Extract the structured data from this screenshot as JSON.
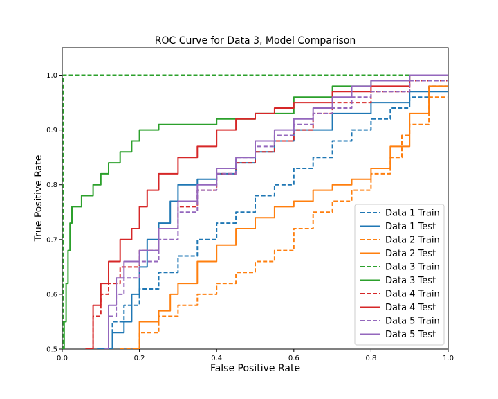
{
  "chart_data": {
    "type": "line",
    "title": "ROC Curve for Data 3, Model Comparison",
    "xlabel": "False Positive Rate",
    "ylabel": "True Positive Rate",
    "xlim": [
      0.0,
      1.0
    ],
    "ylim": [
      0.5,
      1.05
    ],
    "xticks": [
      "0.0",
      "0.2",
      "0.4",
      "0.6",
      "0.8",
      "1.0"
    ],
    "yticks": [
      "0.5",
      "0.6",
      "0.7",
      "0.8",
      "0.9",
      "1.0"
    ],
    "grid": false,
    "legend_position": "lower-right",
    "series": [
      {
        "name": "Data 1 Train",
        "color": "#1f77b4",
        "style": "dashed",
        "x": [
          0.09,
          0.13,
          0.16,
          0.2,
          0.25,
          0.3,
          0.35,
          0.4,
          0.45,
          0.5,
          0.55,
          0.6,
          0.65,
          0.7,
          0.75,
          0.8,
          0.85,
          0.9,
          0.95,
          1.0
        ],
        "y": [
          0.5,
          0.55,
          0.58,
          0.61,
          0.64,
          0.67,
          0.7,
          0.73,
          0.75,
          0.78,
          0.8,
          0.83,
          0.85,
          0.88,
          0.9,
          0.92,
          0.94,
          0.96,
          0.98,
          1.0
        ]
      },
      {
        "name": "Data 1 Test",
        "color": "#1f77b4",
        "style": "solid",
        "x": [
          0.1,
          0.13,
          0.16,
          0.18,
          0.2,
          0.22,
          0.25,
          0.28,
          0.3,
          0.35,
          0.4,
          0.45,
          0.5,
          0.55,
          0.6,
          0.7,
          0.8,
          0.9,
          1.0
        ],
        "y": [
          0.5,
          0.53,
          0.55,
          0.6,
          0.65,
          0.7,
          0.73,
          0.77,
          0.8,
          0.81,
          0.82,
          0.84,
          0.86,
          0.88,
          0.9,
          0.93,
          0.95,
          0.97,
          1.0
        ]
      },
      {
        "name": "Data 2 Train",
        "color": "#ff7f0e",
        "style": "dashed",
        "x": [
          0.15,
          0.2,
          0.25,
          0.3,
          0.35,
          0.4,
          0.45,
          0.5,
          0.55,
          0.6,
          0.65,
          0.7,
          0.75,
          0.8,
          0.85,
          0.88,
          0.9,
          0.95,
          1.0
        ],
        "y": [
          0.5,
          0.53,
          0.56,
          0.58,
          0.6,
          0.62,
          0.64,
          0.66,
          0.68,
          0.72,
          0.75,
          0.77,
          0.79,
          0.82,
          0.85,
          0.89,
          0.91,
          0.96,
          1.0
        ]
      },
      {
        "name": "Data 2 Test",
        "color": "#ff7f0e",
        "style": "solid",
        "x": [
          0.19,
          0.2,
          0.25,
          0.28,
          0.3,
          0.35,
          0.4,
          0.45,
          0.5,
          0.55,
          0.6,
          0.65,
          0.7,
          0.75,
          0.8,
          0.85,
          0.9,
          0.95,
          1.0
        ],
        "y": [
          0.5,
          0.55,
          0.57,
          0.6,
          0.62,
          0.66,
          0.69,
          0.72,
          0.74,
          0.76,
          0.77,
          0.79,
          0.8,
          0.81,
          0.83,
          0.87,
          0.93,
          0.98,
          1.0
        ]
      },
      {
        "name": "Data 3 Train",
        "color": "#2ca02c",
        "style": "dashed",
        "x": [
          0.0,
          0.003,
          0.2,
          0.4,
          0.6,
          0.8,
          1.0
        ],
        "y": [
          0.5,
          1.0,
          1.0,
          1.0,
          1.0,
          1.0,
          1.0
        ]
      },
      {
        "name": "Data 3 Test",
        "color": "#2ca02c",
        "style": "solid",
        "x": [
          0.0,
          0.005,
          0.01,
          0.015,
          0.02,
          0.025,
          0.03,
          0.05,
          0.08,
          0.1,
          0.12,
          0.15,
          0.18,
          0.2,
          0.25,
          0.3,
          0.4,
          0.5,
          0.6,
          0.7,
          0.8,
          0.9,
          1.0
        ],
        "y": [
          0.5,
          0.55,
          0.62,
          0.68,
          0.73,
          0.76,
          0.76,
          0.78,
          0.8,
          0.82,
          0.84,
          0.86,
          0.88,
          0.9,
          0.91,
          0.91,
          0.92,
          0.93,
          0.96,
          0.98,
          0.99,
          1.0,
          1.0
        ]
      },
      {
        "name": "Data 4 Train",
        "color": "#d62728",
        "style": "dashed",
        "x": [
          0.06,
          0.08,
          0.1,
          0.12,
          0.15,
          0.2,
          0.25,
          0.3,
          0.35,
          0.4,
          0.45,
          0.5,
          0.55,
          0.6,
          0.65,
          0.7,
          0.8,
          0.9,
          1.0
        ],
        "y": [
          0.5,
          0.56,
          0.6,
          0.62,
          0.65,
          0.68,
          0.72,
          0.76,
          0.79,
          0.82,
          0.84,
          0.86,
          0.88,
          0.9,
          0.93,
          0.95,
          0.97,
          0.99,
          1.0
        ]
      },
      {
        "name": "Data 4 Test",
        "color": "#d62728",
        "style": "solid",
        "x": [
          0.06,
          0.08,
          0.1,
          0.12,
          0.15,
          0.18,
          0.2,
          0.22,
          0.25,
          0.3,
          0.35,
          0.4,
          0.45,
          0.5,
          0.55,
          0.6,
          0.7,
          0.8,
          0.9,
          1.0
        ],
        "y": [
          0.5,
          0.58,
          0.62,
          0.66,
          0.7,
          0.72,
          0.76,
          0.79,
          0.82,
          0.85,
          0.87,
          0.9,
          0.92,
          0.93,
          0.94,
          0.95,
          0.97,
          0.98,
          1.0,
          1.0
        ]
      },
      {
        "name": "Data 5 Train",
        "color": "#9467bd",
        "style": "dashed",
        "x": [
          0.11,
          0.12,
          0.14,
          0.16,
          0.2,
          0.25,
          0.3,
          0.35,
          0.4,
          0.45,
          0.5,
          0.55,
          0.6,
          0.65,
          0.7,
          0.75,
          0.8,
          0.9,
          1.0
        ],
        "y": [
          0.5,
          0.56,
          0.6,
          0.63,
          0.66,
          0.7,
          0.75,
          0.79,
          0.82,
          0.85,
          0.87,
          0.89,
          0.91,
          0.93,
          0.94,
          0.96,
          0.97,
          0.99,
          1.0
        ]
      },
      {
        "name": "Data 5 Test",
        "color": "#9467bd",
        "style": "solid",
        "x": [
          0.11,
          0.12,
          0.14,
          0.16,
          0.2,
          0.25,
          0.3,
          0.35,
          0.4,
          0.45,
          0.5,
          0.55,
          0.6,
          0.65,
          0.7,
          0.75,
          0.8,
          0.9,
          1.0
        ],
        "y": [
          0.5,
          0.58,
          0.63,
          0.66,
          0.68,
          0.72,
          0.77,
          0.8,
          0.83,
          0.85,
          0.88,
          0.9,
          0.92,
          0.94,
          0.96,
          0.98,
          0.99,
          1.0,
          1.0
        ]
      }
    ]
  }
}
